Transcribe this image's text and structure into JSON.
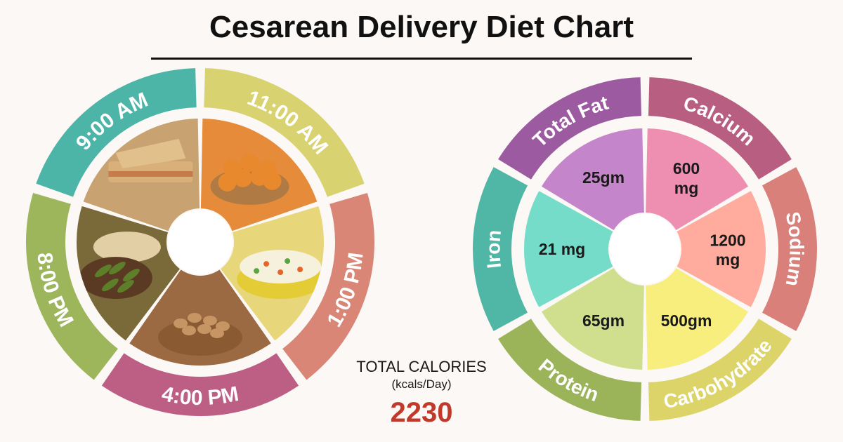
{
  "title": "Cesarean Delivery Diet Chart",
  "meal_schedule": {
    "times": [
      {
        "label": "9:00 AM",
        "ring_color": "#4cb5a7",
        "food": "grilled-sandwich",
        "photo_color": "#c9a271"
      },
      {
        "label": "11:00 AM",
        "ring_color": "#d9d270",
        "food": "dried-apricots",
        "photo_color": "#e58b3a"
      },
      {
        "label": "1:00 PM",
        "ring_color": "#d98676",
        "food": "vegetable-rice",
        "photo_color": "#e8d77a"
      },
      {
        "label": "4:00 PM",
        "ring_color": "#bd5f85",
        "food": "mixed-nuts",
        "photo_color": "#9b6a43"
      },
      {
        "label": "8:00 PM",
        "ring_color": "#9db65c",
        "food": "okra-curry-and-roti",
        "photo_color": "#7a6a3a"
      }
    ]
  },
  "totals": {
    "label": "TOTAL CALORIES",
    "unit": "(kcals/Day)",
    "value": "2230"
  },
  "nutrients": {
    "items": [
      {
        "name": "Total Fat",
        "value": "25gm",
        "ring_color": "#9c5ba0",
        "inner_color": "#c585ca"
      },
      {
        "name": "Calcium",
        "value": "600 mg",
        "ring_color": "#b85e81",
        "inner_color": "#ee8fb2"
      },
      {
        "name": "Sodium",
        "value": "1200 mg",
        "ring_color": "#d9807a",
        "inner_color": "#ffab9d"
      },
      {
        "name": "Carbohydrate",
        "value": "500gm",
        "ring_color": "#dcd468",
        "inner_color": "#f7ee7d"
      },
      {
        "name": "Protein",
        "value": "65gm",
        "ring_color": "#9bb45a",
        "inner_color": "#cfdf8d"
      },
      {
        "name": "Iron",
        "value": "21 mg",
        "ring_color": "#50b6a6",
        "inner_color": "#74dcc9"
      }
    ]
  }
}
